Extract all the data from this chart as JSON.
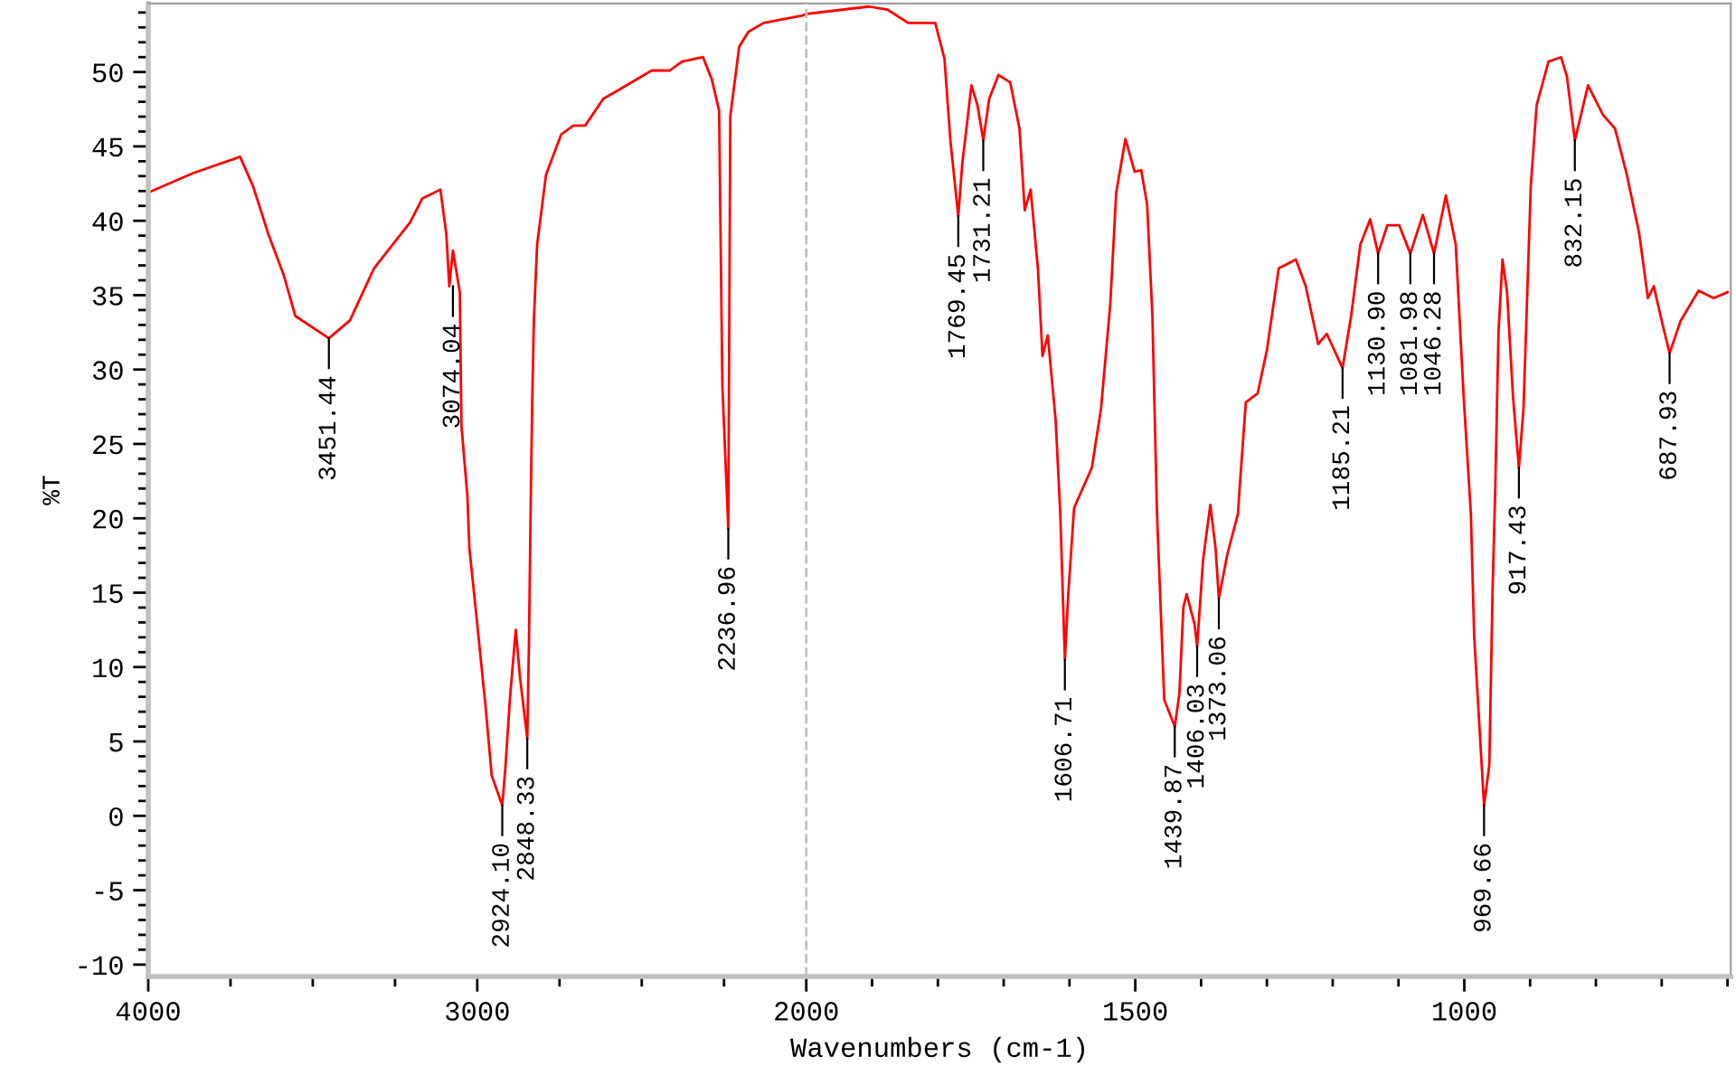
{
  "chart_data": [
    {
      "type": "line",
      "ylabel": "%T",
      "tick_labels": "xy",
      "xlim": [
        4000,
        2000
      ],
      "ylim": [
        -10.8,
        54.6
      ],
      "xticks": [
        4000,
        {
          "value": 3750,
          "label": null
        },
        {
          "value": 3500,
          "label": null
        },
        {
          "value": 3250,
          "label": null
        },
        3000,
        {
          "value": 2750,
          "label": null
        },
        {
          "value": 2500,
          "label": null
        },
        {
          "value": 2250,
          "label": null
        },
        2000
      ],
      "yticks": [
        -10,
        {
          "value": -9,
          "label": null
        },
        {
          "value": -8,
          "label": null
        },
        {
          "value": -7,
          "label": null
        },
        {
          "value": -6,
          "label": null
        },
        -5,
        {
          "value": -4,
          "label": null
        },
        {
          "value": -3,
          "label": null
        },
        {
          "value": -2,
          "label": null
        },
        {
          "value": -1,
          "label": null
        },
        0,
        {
          "value": 1,
          "label": null
        },
        {
          "value": 2,
          "label": null
        },
        {
          "value": 3,
          "label": null
        },
        {
          "value": 4,
          "label": null
        },
        5,
        {
          "value": 6,
          "label": null
        },
        {
          "value": 7,
          "label": null
        },
        {
          "value": 8,
          "label": null
        },
        {
          "value": 9,
          "label": null
        },
        10,
        {
          "value": 11,
          "label": null
        },
        {
          "value": 12,
          "label": null
        },
        {
          "value": 13,
          "label": null
        },
        {
          "value": 14,
          "label": null
        },
        15,
        {
          "value": 16,
          "label": null
        },
        {
          "value": 17,
          "label": null
        },
        {
          "value": 18,
          "label": null
        },
        {
          "value": 19,
          "label": null
        },
        20,
        {
          "value": 21,
          "label": null
        },
        {
          "value": 22,
          "label": null
        },
        {
          "value": 23,
          "label": null
        },
        {
          "value": 24,
          "label": null
        },
        25,
        {
          "value": 26,
          "label": null
        },
        {
          "value": 27,
          "label": null
        },
        {
          "value": 28,
          "label": null
        },
        {
          "value": 29,
          "label": null
        },
        30,
        {
          "value": 31,
          "label": null
        },
        {
          "value": 32,
          "label": null
        },
        {
          "value": 33,
          "label": null
        },
        {
          "value": 34,
          "label": null
        },
        35,
        {
          "value": 36,
          "label": null
        },
        {
          "value": 37,
          "label": null
        },
        {
          "value": 38,
          "label": null
        },
        {
          "value": 39,
          "label": null
        },
        40,
        {
          "value": 41,
          "label": null
        },
        {
          "value": 42,
          "label": null
        },
        {
          "value": 43,
          "label": null
        },
        {
          "value": 44,
          "label": null
        },
        45,
        {
          "value": 46,
          "label": null
        },
        {
          "value": 47,
          "label": null
        },
        {
          "value": 48,
          "label": null
        },
        {
          "value": 49,
          "label": null
        },
        50,
        {
          "value": 51,
          "label": null
        },
        {
          "value": 52,
          "label": null
        },
        {
          "value": 53,
          "label": null
        },
        {
          "value": 54,
          "label": null
        }
      ],
      "marker": "none",
      "line_style": "solid",
      "series": [
        {
          "color": "#ff0000",
          "x": [
            4000,
            3864,
            3721,
            3681,
            3635,
            3589,
            3553,
            3451,
            3387,
            3314,
            3204,
            3167,
            3112,
            3094,
            3085,
            3074,
            3053,
            3048,
            3030,
            3024,
            3002,
            2975,
            2956,
            2924,
            2914,
            2901,
            2883,
            2870,
            2848,
            2843,
            2837,
            2833,
            2828,
            2818,
            2791,
            2745,
            2708,
            2672,
            2617,
            2562,
            2470,
            2415,
            2378,
            2314,
            2287,
            2265,
            2255,
            2237,
            2231,
            2204,
            2176,
            2130,
            2011,
            2000
          ],
          "values": [
            41.9,
            43.2,
            44.3,
            42.3,
            39.1,
            36.4,
            33.6,
            32.1,
            33.3,
            36.8,
            39.9,
            41.5,
            42.1,
            39.1,
            35.6,
            38.0,
            35.2,
            26.2,
            21.5,
            18.0,
            13.3,
            7.4,
            2.7,
            0.7,
            3.4,
            7.8,
            12.5,
            9.3,
            5.2,
            11.5,
            21.9,
            27.8,
            33.3,
            38.4,
            43.1,
            45.8,
            46.4,
            46.4,
            48.2,
            48.9,
            50.1,
            50.1,
            50.7,
            51.0,
            49.5,
            47.4,
            28.9,
            19.3,
            47.0,
            51.7,
            52.7,
            53.3,
            53.8,
            53.9
          ]
        }
      ],
      "annotations": [
        {
          "text": "3451.44",
          "x": 3451,
          "y": 32.1
        },
        {
          "text": "3074.04",
          "x": 3074,
          "y": 35.6
        },
        {
          "text": "2924.10",
          "x": 2924,
          "y": 0.7
        },
        {
          "text": "2848.33",
          "x": 2848,
          "y": 5.2
        },
        {
          "text": "2236.96",
          "x": 2237,
          "y": 19.3
        }
      ]
    },
    {
      "type": "line",
      "xlabel": "Wavenumbers (cm-1)",
      "tick_labels": "x",
      "xlim": [
        2000,
        595
      ],
      "ylim": [
        -10.8,
        54.6
      ],
      "xticks": [
        {
          "value": 1900,
          "label": null
        },
        {
          "value": 1800,
          "label": null
        },
        {
          "value": 1700,
          "label": null
        },
        {
          "value": 1600,
          "label": null
        },
        1500,
        {
          "value": 1400,
          "label": null
        },
        {
          "value": 1300,
          "label": null
        },
        {
          "value": 1200,
          "label": null
        },
        {
          "value": 1100,
          "label": null
        },
        1000,
        {
          "value": 900,
          "label": null
        },
        {
          "value": 800,
          "label": null
        },
        {
          "value": 700,
          "label": null
        },
        {
          "value": 600,
          "label": null
        }
      ],
      "marker": "none",
      "line_style": "solid",
      "ref_lines": [
        {
          "axis": "x",
          "value": 2000,
          "color": "#c0c0c0",
          "line_style": "dashed"
        }
      ],
      "series": [
        {
          "color": "#ff0000",
          "x": [
            2000,
            1905,
            1877,
            1845,
            1804,
            1790,
            1781,
            1769,
            1763,
            1749,
            1740,
            1731,
            1722,
            1708,
            1690,
            1676,
            1668,
            1659,
            1648,
            1641,
            1633,
            1621,
            1614,
            1607,
            1602,
            1593,
            1589,
            1566,
            1552,
            1538,
            1529,
            1515,
            1501,
            1491,
            1482,
            1474,
            1467,
            1456,
            1440,
            1433,
            1427,
            1422,
            1410,
            1406,
            1397,
            1386,
            1378,
            1373,
            1360,
            1344,
            1341,
            1332,
            1314,
            1300,
            1282,
            1256,
            1241,
            1222,
            1209,
            1185,
            1172,
            1158,
            1143,
            1131,
            1117,
            1099,
            1082,
            1063,
            1046,
            1028,
            1013,
            1001,
            990,
            985,
            970,
            962,
            957,
            953,
            948,
            942,
            935,
            926,
            917,
            910,
            899,
            890,
            872,
            853,
            844,
            832,
            812,
            789,
            771,
            753,
            734,
            721,
            712,
            698,
            688,
            671,
            644,
            621,
            600
          ],
          "values": [
            53.9,
            54.4,
            54.2,
            53.3,
            53.3,
            50.9,
            45.4,
            40.3,
            43.8,
            49.1,
            47.8,
            45.4,
            48.2,
            49.8,
            49.3,
            46.2,
            40.7,
            42.1,
            36.8,
            30.9,
            32.3,
            26.6,
            20.3,
            10.5,
            14.8,
            20.7,
            21.1,
            23.4,
            27.4,
            34.4,
            41.9,
            45.5,
            43.3,
            43.4,
            41.1,
            33.6,
            20.3,
            7.8,
            6.0,
            8.2,
            14.0,
            14.9,
            12.9,
            11.4,
            17.2,
            20.9,
            18.0,
            14.6,
            17.6,
            20.3,
            22.3,
            27.8,
            28.4,
            31.3,
            36.8,
            37.4,
            35.6,
            31.7,
            32.4,
            30.1,
            33.6,
            38.4,
            40.1,
            37.8,
            39.7,
            39.7,
            37.8,
            40.4,
            37.8,
            41.7,
            38.4,
            28.2,
            20.3,
            12.1,
            0.7,
            3.4,
            15.2,
            21.9,
            32.5,
            37.4,
            35.2,
            28.2,
            23.4,
            27.4,
            42.3,
            47.8,
            50.7,
            51.0,
            49.7,
            45.4,
            49.1,
            47.1,
            46.2,
            43.1,
            39.1,
            34.8,
            35.6,
            32.9,
            31.1,
            33.3,
            35.3,
            34.8,
            35.2
          ]
        }
      ],
      "annotations": [
        {
          "text": "1769.45",
          "x": 1769,
          "y": 40.3
        },
        {
          "text": "1731.21",
          "x": 1731,
          "y": 45.4
        },
        {
          "text": "1606.71",
          "x": 1607,
          "y": 10.5
        },
        {
          "text": "1439.87",
          "x": 1440,
          "y": 6.0
        },
        {
          "text": "1406.03",
          "x": 1406,
          "y": 11.4
        },
        {
          "text": "1373.06",
          "x": 1373,
          "y": 14.6
        },
        {
          "text": "1185.21",
          "x": 1185,
          "y": 30.1
        },
        {
          "text": "1130.90",
          "x": 1131,
          "y": 37.8
        },
        {
          "text": "1081.98",
          "x": 1082,
          "y": 37.8
        },
        {
          "text": "1046.28",
          "x": 1046,
          "y": 37.8
        },
        {
          "text": "969.66",
          "x": 970,
          "y": 0.7
        },
        {
          "text": "917.43",
          "x": 917,
          "y": 23.4
        },
        {
          "text": "832.15",
          "x": 832,
          "y": 45.4
        },
        {
          "text": "687.93",
          "x": 688,
          "y": 31.1
        }
      ]
    }
  ]
}
